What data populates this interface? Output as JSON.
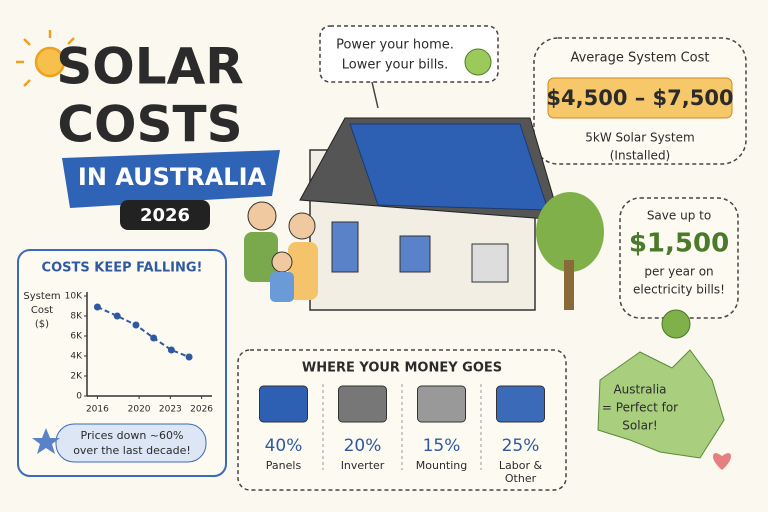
{
  "header": {
    "title_line1": "SOLAR",
    "title_line2": "COSTS",
    "banner": "IN AUSTRALIA",
    "year": "2026"
  },
  "speech_bubble": {
    "lines": [
      "Power your home.",
      "Lower your bills."
    ]
  },
  "average_cost": {
    "label": "Average System Cost",
    "range": "$4,500 – $7,500",
    "system": "5kW Solar System",
    "note": "(Installed)"
  },
  "savings": {
    "intro": "Save up to",
    "amount": "$1,500",
    "detail": [
      "per year on",
      "electricity bills!"
    ]
  },
  "chart_data": {
    "type": "line",
    "title": "COSTS KEEP FALLING!",
    "y_label": [
      "System",
      "Cost",
      "($)"
    ],
    "x": [
      2016,
      2017.9,
      2019.7,
      2021.4,
      2023.1,
      2024.8
    ],
    "values": [
      8900,
      8000,
      7100,
      5800,
      4600,
      3900
    ],
    "color": "#2f5aa0",
    "xlim": [
      2015,
      2027
    ],
    "xticks": [
      2016,
      2020,
      2023,
      2026
    ],
    "ylim": [
      0,
      10000
    ],
    "yticks": [
      0,
      {
        "value": 2000,
        "label": "2K"
      },
      {
        "value": 4000,
        "label": "4K"
      },
      {
        "value": 6000,
        "label": "6K"
      },
      {
        "value": 8000,
        "label": "8K"
      },
      {
        "value": 10000,
        "label": "10K"
      }
    ],
    "annotation": [
      "Prices down ~60%",
      "over the last decade!"
    ]
  },
  "money": {
    "title": "WHERE YOUR MONEY GOES",
    "items": [
      {
        "percent": "40%",
        "label": [
          "Panels"
        ]
      },
      {
        "percent": "20%",
        "label": [
          "Inverter"
        ]
      },
      {
        "percent": "15%",
        "label": [
          "Mounting"
        ]
      },
      {
        "percent": "25%",
        "label": [
          "Labor &",
          "Other"
        ]
      }
    ]
  },
  "australia": {
    "lines": [
      "Australia",
      "= Perfect for",
      "Solar!"
    ]
  }
}
